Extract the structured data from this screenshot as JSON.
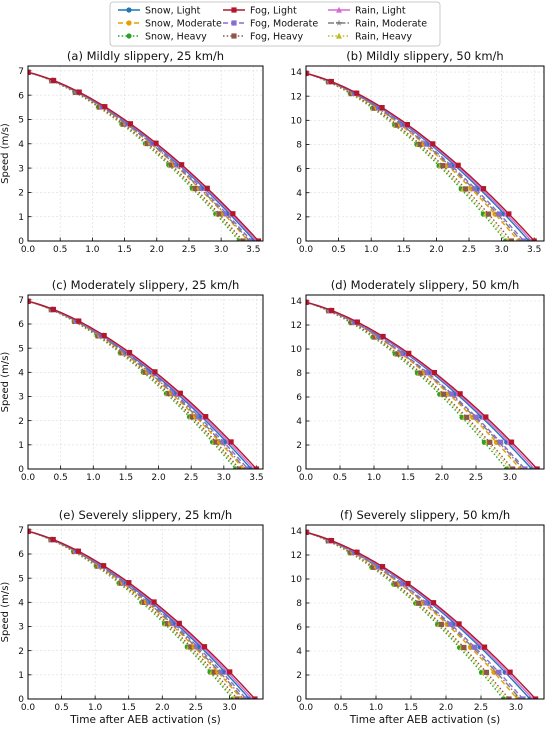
{
  "legend": {
    "placement": "top-center",
    "entries": [
      {
        "name": "Snow, Light",
        "color": "#1f77b4",
        "dash": "solid",
        "marker": "circle"
      },
      {
        "name": "Fog, Light",
        "color": "#b2182b",
        "dash": "solid",
        "marker": "square"
      },
      {
        "name": "Rain, Light",
        "color": "#d66ad6",
        "dash": "solid",
        "marker": "triangle"
      },
      {
        "name": "Snow, Moderate",
        "color": "#e69f00",
        "dash": "dashed",
        "marker": "circle"
      },
      {
        "name": "Fog, Moderate",
        "color": "#8c6bd1",
        "dash": "dashed",
        "marker": "square"
      },
      {
        "name": "Rain, Moderate",
        "color": "#7f7f7f",
        "dash": "dashdot",
        "marker": "star"
      },
      {
        "name": "Snow, Heavy",
        "color": "#2ca02c",
        "dash": "dotted",
        "marker": "circle"
      },
      {
        "name": "Fog, Heavy",
        "color": "#8c564b",
        "dash": "dotted",
        "marker": "square"
      },
      {
        "name": "Rain, Heavy",
        "color": "#bcbd22",
        "dash": "dotted",
        "marker": "triangle"
      }
    ]
  },
  "shared": {
    "ylabel": "Speed (m/s)",
    "xlabel": "Time after AEB activation (s)",
    "grid": true
  },
  "chart_data": [
    {
      "type": "line",
      "title": "(a) Mildly slippery, 25 km/h",
      "v0": 6.94,
      "xlim": [
        0,
        3.65
      ],
      "ylim": [
        0,
        7.2
      ],
      "xticks": [
        "0.0",
        "0.5",
        "1.0",
        "1.5",
        "2.0",
        "2.5",
        "3.0",
        "3.5"
      ],
      "yticks": [
        "0",
        "1",
        "2",
        "3",
        "4",
        "5",
        "6",
        "7"
      ],
      "series": [
        {
          "name": "Snow, Light",
          "stop_time": 3.52
        },
        {
          "name": "Fog, Light",
          "stop_time": 3.58
        },
        {
          "name": "Rain, Light",
          "stop_time": 3.55
        },
        {
          "name": "Snow, Moderate",
          "stop_time": 3.42
        },
        {
          "name": "Fog, Moderate",
          "stop_time": 3.47
        },
        {
          "name": "Rain, Moderate",
          "stop_time": 3.44
        },
        {
          "name": "Snow, Heavy",
          "stop_time": 3.28
        },
        {
          "name": "Fog, Heavy",
          "stop_time": 3.34
        },
        {
          "name": "Rain, Heavy",
          "stop_time": 3.31
        }
      ]
    },
    {
      "type": "line",
      "title": "(b) Mildly slippery, 50 km/h",
      "v0": 13.89,
      "xlim": [
        0,
        3.65
      ],
      "ylim": [
        0,
        14.5
      ],
      "xticks": [
        "0.0",
        "0.5",
        "1.0",
        "1.5",
        "2.0",
        "2.5",
        "3.0",
        "3.5"
      ],
      "yticks": [
        "0",
        "2",
        "4",
        "6",
        "8",
        "10",
        "12",
        "14"
      ],
      "series": [
        {
          "name": "Snow, Light",
          "stop_time": 3.42
        },
        {
          "name": "Fog, Light",
          "stop_time": 3.5
        },
        {
          "name": "Rain, Light",
          "stop_time": 3.46
        },
        {
          "name": "Snow, Moderate",
          "stop_time": 3.26
        },
        {
          "name": "Fog, Moderate",
          "stop_time": 3.34
        },
        {
          "name": "Rain, Moderate",
          "stop_time": 3.3
        },
        {
          "name": "Snow, Heavy",
          "stop_time": 3.06
        },
        {
          "name": "Fog, Heavy",
          "stop_time": 3.15
        },
        {
          "name": "Rain, Heavy",
          "stop_time": 3.1
        }
      ]
    },
    {
      "type": "line",
      "title": "(c) Moderately slippery, 25 km/h",
      "v0": 6.94,
      "xlim": [
        0,
        3.6
      ],
      "ylim": [
        0,
        7.2
      ],
      "xticks": [
        "0.0",
        "0.5",
        "1.0",
        "1.5",
        "2.0",
        "2.5",
        "3.0",
        "3.5"
      ],
      "yticks": [
        "0",
        "1",
        "2",
        "3",
        "4",
        "5",
        "6",
        "7"
      ],
      "series": [
        {
          "name": "Snow, Light",
          "stop_time": 3.42
        },
        {
          "name": "Fog, Light",
          "stop_time": 3.5
        },
        {
          "name": "Rain, Light",
          "stop_time": 3.46
        },
        {
          "name": "Snow, Moderate",
          "stop_time": 3.3
        },
        {
          "name": "Fog, Moderate",
          "stop_time": 3.37
        },
        {
          "name": "Rain, Moderate",
          "stop_time": 3.33
        },
        {
          "name": "Snow, Heavy",
          "stop_time": 3.18
        },
        {
          "name": "Fog, Heavy",
          "stop_time": 3.24
        },
        {
          "name": "Rain, Heavy",
          "stop_time": 3.21
        }
      ]
    },
    {
      "type": "line",
      "title": "(d) Moderately slippery, 50 km/h",
      "v0": 13.89,
      "xlim": [
        0,
        3.5
      ],
      "ylim": [
        0,
        14.5
      ],
      "xticks": [
        "0.0",
        "0.5",
        "1.0",
        "1.5",
        "2.0",
        "2.5",
        "3.0"
      ],
      "yticks": [
        "0",
        "2",
        "4",
        "6",
        "8",
        "10",
        "12",
        "14"
      ],
      "series": [
        {
          "name": "Snow, Light",
          "stop_time": 3.32
        },
        {
          "name": "Fog, Light",
          "stop_time": 3.4
        },
        {
          "name": "Rain, Light",
          "stop_time": 3.36
        },
        {
          "name": "Snow, Moderate",
          "stop_time": 3.15
        },
        {
          "name": "Fog, Moderate",
          "stop_time": 3.22
        },
        {
          "name": "Rain, Moderate",
          "stop_time": 3.19
        },
        {
          "name": "Snow, Heavy",
          "stop_time": 2.95
        },
        {
          "name": "Fog, Heavy",
          "stop_time": 3.04
        },
        {
          "name": "Rain, Heavy",
          "stop_time": 3.0
        }
      ]
    },
    {
      "type": "line",
      "title": "(e) Severely slippery, 25 km/h",
      "v0": 6.94,
      "xlim": [
        0,
        3.5
      ],
      "ylim": [
        0,
        7.2
      ],
      "xticks": [
        "0.0",
        "0.5",
        "1.0",
        "1.5",
        "2.0",
        "2.5",
        "3.0"
      ],
      "yticks": [
        "0",
        "1",
        "2",
        "3",
        "4",
        "5",
        "6",
        "7"
      ],
      "series": [
        {
          "name": "Snow, Light",
          "stop_time": 3.3
        },
        {
          "name": "Fog, Light",
          "stop_time": 3.38
        },
        {
          "name": "Rain, Light",
          "stop_time": 3.34
        },
        {
          "name": "Snow, Moderate",
          "stop_time": 3.18
        },
        {
          "name": "Fog, Moderate",
          "stop_time": 3.25
        },
        {
          "name": "Rain, Moderate",
          "stop_time": 3.21
        },
        {
          "name": "Snow, Heavy",
          "stop_time": 3.05
        },
        {
          "name": "Fog, Heavy",
          "stop_time": 3.12
        },
        {
          "name": "Rain, Heavy",
          "stop_time": 3.08
        }
      ]
    },
    {
      "type": "line",
      "title": "(f) Severely slippery, 50 km/h",
      "v0": 13.89,
      "xlim": [
        0,
        3.4
      ],
      "ylim": [
        0,
        14.5
      ],
      "xticks": [
        "0.0",
        "0.5",
        "1.0",
        "1.5",
        "2.0",
        "2.5",
        "3.0"
      ],
      "yticks": [
        "0",
        "2",
        "4",
        "6",
        "8",
        "10",
        "12",
        "14"
      ],
      "series": [
        {
          "name": "Snow, Light",
          "stop_time": 3.2
        },
        {
          "name": "Fog, Light",
          "stop_time": 3.28
        },
        {
          "name": "Rain, Light",
          "stop_time": 3.24
        },
        {
          "name": "Snow, Moderate",
          "stop_time": 3.02
        },
        {
          "name": "Fog, Moderate",
          "stop_time": 3.1
        },
        {
          "name": "Rain, Moderate",
          "stop_time": 3.06
        },
        {
          "name": "Snow, Heavy",
          "stop_time": 2.82
        },
        {
          "name": "Fog, Heavy",
          "stop_time": 2.9
        },
        {
          "name": "Rain, Heavy",
          "stop_time": 2.86
        }
      ]
    }
  ]
}
